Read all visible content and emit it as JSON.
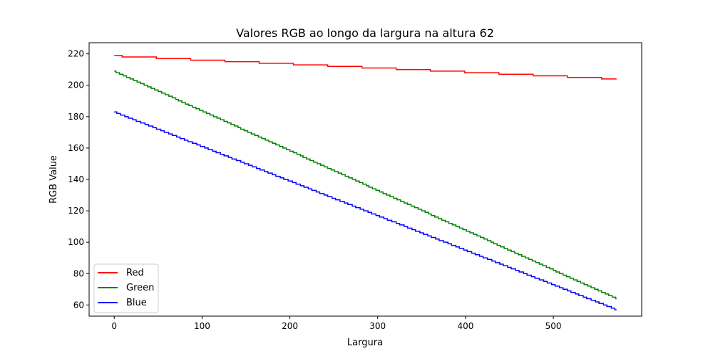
{
  "chart_data": {
    "type": "line",
    "title": "Valores RGB ao longo da largura na altura 62",
    "xlabel": "Largura",
    "ylabel": "RGB Value",
    "xlim": [
      -28.6,
      600.6
    ],
    "ylim": [
      52.9,
      227.1
    ],
    "xticks": [
      0,
      100,
      200,
      300,
      400,
      500
    ],
    "yticks": [
      60,
      80,
      100,
      120,
      140,
      160,
      180,
      200,
      220
    ],
    "grid": false,
    "legend_position": "lower-left",
    "x_range": [
      0,
      572
    ],
    "series": [
      {
        "name": "Red",
        "color": "#ff0000",
        "style": "step",
        "points": [
          [
            0,
            219
          ],
          [
            9,
            218
          ],
          [
            48,
            217
          ],
          [
            87,
            216
          ],
          [
            126,
            215
          ],
          [
            165,
            214
          ],
          [
            204,
            213
          ],
          [
            243,
            212
          ],
          [
            282,
            211
          ],
          [
            321,
            210
          ],
          [
            360,
            209
          ],
          [
            399,
            208
          ],
          [
            438,
            207
          ],
          [
            477,
            206
          ],
          [
            516,
            205
          ],
          [
            555,
            204
          ],
          [
            572,
            204
          ]
        ]
      },
      {
        "name": "Green",
        "color": "#008000",
        "style": "line",
        "points": [
          [
            0,
            209
          ],
          [
            572,
            64
          ]
        ]
      },
      {
        "name": "Blue",
        "color": "#0000ff",
        "style": "line",
        "points": [
          [
            0,
            183
          ],
          [
            572,
            57
          ]
        ]
      }
    ]
  }
}
